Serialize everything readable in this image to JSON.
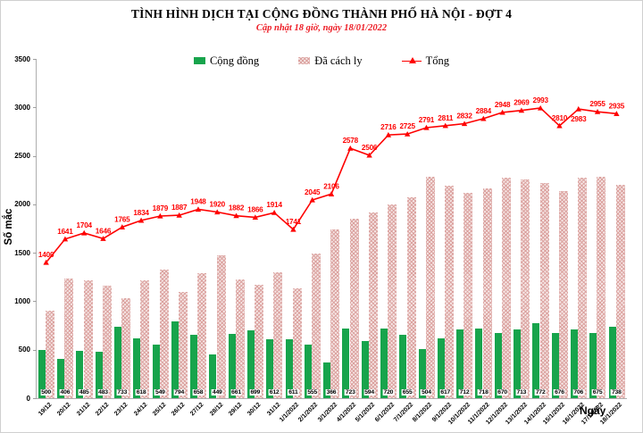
{
  "header": {
    "title": "TÌNH HÌNH DỊCH TẠI CỘNG ĐỒNG THÀNH PHỐ HÀ NỘI - ĐỢT 4",
    "subtitle": "Cập nhật 18 giờ, ngày 18/01/2022"
  },
  "legend": {
    "community_label": "Cộng đồng",
    "quarantined_label": "Đã cách ly",
    "total_label": "Tổng"
  },
  "axes": {
    "y_title": "Số mắc",
    "x_title": "Ngày",
    "yticks": [
      0,
      500,
      1000,
      1500,
      2000,
      2500,
      3000,
      3500
    ]
  },
  "colors": {
    "community_green": "#17a44c",
    "quarantined_pink_base": "#f6e7e6",
    "quarantined_pink_dot": "#d99694",
    "total_line_red": "#fe0000",
    "subtitle_red": "#ed1b24",
    "axis_gray": "#aeaeae"
  },
  "chart_data": {
    "type": "combo-bar-line",
    "title": "TÌNH HÌNH DỊCH TẠI CỘNG ĐỒNG THÀNH PHỐ HÀ NỘI - ĐỢT 4",
    "subtitle": "Cập nhật 18 giờ, ngày 18/01/2022",
    "xlabel": "Ngày",
    "ylabel": "Số mắc",
    "ylim": [
      0,
      3500
    ],
    "grid": false,
    "legend_position": "top-center",
    "categories": [
      "19/12",
      "20/12",
      "21/12",
      "22/12",
      "23/12",
      "24/12",
      "25/12",
      "26/12",
      "27/12",
      "28/12",
      "29/12",
      "30/12",
      "31/12",
      "1/1/2022",
      "2/1/2022",
      "3/1/2022",
      "4/1/2022",
      "5/1/2022",
      "6/1/2022",
      "7/1/2022",
      "8/1/2022",
      "9/1/2022",
      "10/1/2022",
      "11/1/2022",
      "12/1/2022",
      "13/1/2022",
      "14/1/2022",
      "15/1/2022",
      "16/1/2022",
      "17/1/2022",
      "18/1/2022"
    ],
    "series": [
      {
        "name": "Cộng đồng",
        "type": "bar",
        "color": "#17a44c",
        "labels_shown": true,
        "values": [
          500,
          406,
          485,
          483,
          733,
          618,
          549,
          794,
          658,
          449,
          661,
          699,
          612,
          611,
          555,
          366,
          723,
          594,
          720,
          655,
          504,
          617,
          712,
          718,
          670,
          713,
          772,
          676,
          706,
          675,
          738
        ]
      },
      {
        "name": "Đã cách ly",
        "type": "bar",
        "pattern": "pink-dots",
        "labels_shown": false,
        "values": [
          900,
          1235,
          1219,
          1163,
          1032,
          1216,
          1330,
          1093,
          1290,
          1471,
          1221,
          1167,
          1302,
          1130,
          1490,
          1740,
          1855,
          1912,
          1996,
          2070,
          2287,
          2194,
          2120,
          2166,
          2278,
          2256,
          2221,
          2134,
          2277,
          2280,
          2197
        ]
      },
      {
        "name": "Tổng",
        "type": "line",
        "color": "#fe0000",
        "marker": "triangle",
        "labels_shown": true,
        "label_below_indices": [
          28
        ],
        "values": [
          1400,
          1641,
          1704,
          1646,
          1765,
          1834,
          1879,
          1887,
          1948,
          1920,
          1882,
          1866,
          1914,
          1741,
          2045,
          2106,
          2578,
          2506,
          2716,
          2725,
          2791,
          2811,
          2832,
          2884,
          2948,
          2969,
          2993,
          2810,
          2983,
          2955,
          2935
        ]
      }
    ]
  }
}
